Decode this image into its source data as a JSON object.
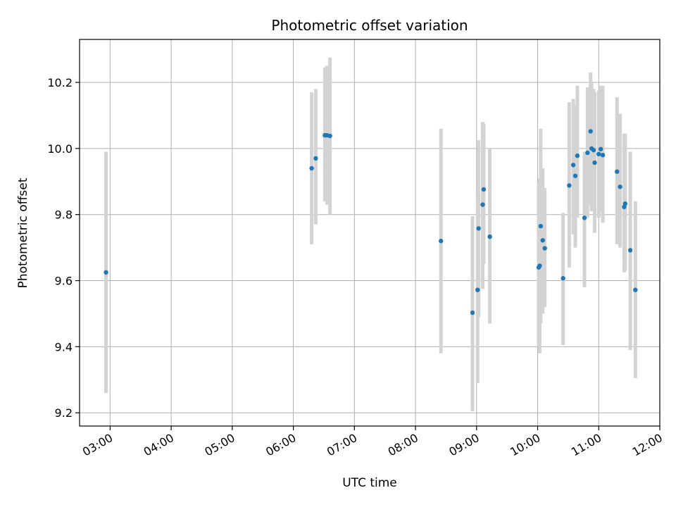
{
  "chart_data": {
    "type": "scatter",
    "title": "Photometric offset variation",
    "xlabel": "UTC time",
    "ylabel": "Photometric offset",
    "x_unit": "UTC time (HH:MM)",
    "xlim": [
      "02:30",
      "12:00"
    ],
    "ylim": [
      9.16,
      10.33
    ],
    "x_ticks": [
      "03:00",
      "04:00",
      "05:00",
      "06:00",
      "07:00",
      "08:00",
      "09:00",
      "10:00",
      "11:00",
      "12:00"
    ],
    "y_ticks": [
      9.2,
      9.4,
      9.6,
      9.8,
      10.0,
      10.2
    ],
    "y_tick_labels": [
      "9.2",
      "9.4",
      "9.6",
      "9.8",
      "10.0",
      "10.2"
    ],
    "grid": true,
    "marker_color": "#1f77b4",
    "errorbar_color": "#d3d3d3",
    "points": [
      {
        "x": "02:56",
        "y": 9.625,
        "ylo": 9.26,
        "yhi": 9.99
      },
      {
        "x": "06:18",
        "y": 9.94,
        "ylo": 9.71,
        "yhi": 10.17
      },
      {
        "x": "06:22",
        "y": 9.97,
        "ylo": 9.77,
        "yhi": 10.18
      },
      {
        "x": "06:31",
        "y": 10.04,
        "ylo": 9.84,
        "yhi": 10.245
      },
      {
        "x": "06:33",
        "y": 10.04,
        "ylo": 9.83,
        "yhi": 10.25
      },
      {
        "x": "06:36",
        "y": 10.038,
        "ylo": 9.8,
        "yhi": 10.275
      },
      {
        "x": "08:25",
        "y": 9.72,
        "ylo": 9.38,
        "yhi": 10.06
      },
      {
        "x": "08:56",
        "y": 9.503,
        "ylo": 9.205,
        "yhi": 9.795
      },
      {
        "x": "09:01",
        "y": 9.572,
        "ylo": 9.29,
        "yhi": 9.86
      },
      {
        "x": "09:02",
        "y": 9.758,
        "ylo": 9.49,
        "yhi": 10.025
      },
      {
        "x": "09:06",
        "y": 9.83,
        "ylo": 9.575,
        "yhi": 10.08
      },
      {
        "x": "09:07",
        "y": 9.876,
        "ylo": 9.65,
        "yhi": 10.075
      },
      {
        "x": "09:13",
        "y": 9.733,
        "ylo": 9.47,
        "yhi": 10.0
      },
      {
        "x": "10:01",
        "y": 9.64,
        "ylo": 9.4,
        "yhi": 9.895
      },
      {
        "x": "10:02",
        "y": 9.645,
        "ylo": 9.38,
        "yhi": 9.91
      },
      {
        "x": "10:03",
        "y": 9.765,
        "ylo": 9.47,
        "yhi": 10.06
      },
      {
        "x": "10:05",
        "y": 9.722,
        "ylo": 9.5,
        "yhi": 9.94
      },
      {
        "x": "10:07",
        "y": 9.698,
        "ylo": 9.52,
        "yhi": 9.88
      },
      {
        "x": "10:25",
        "y": 9.607,
        "ylo": 9.405,
        "yhi": 9.805
      },
      {
        "x": "10:31",
        "y": 9.888,
        "ylo": 9.64,
        "yhi": 10.14
      },
      {
        "x": "10:35",
        "y": 9.95,
        "ylo": 9.74,
        "yhi": 10.15
      },
      {
        "x": "10:37",
        "y": 9.917,
        "ylo": 9.7,
        "yhi": 10.13
      },
      {
        "x": "10:39",
        "y": 9.978,
        "ylo": 9.79,
        "yhi": 10.19
      },
      {
        "x": "10:46",
        "y": 9.79,
        "ylo": 9.58,
        "yhi": 9.99
      },
      {
        "x": "10:49",
        "y": 9.987,
        "ylo": 9.79,
        "yhi": 10.185
      },
      {
        "x": "10:52",
        "y": 10.052,
        "ylo": 9.83,
        "yhi": 10.23
      },
      {
        "x": "10:53",
        "y": 10.0,
        "ylo": 9.81,
        "yhi": 10.2
      },
      {
        "x": "10:55",
        "y": 9.995,
        "ylo": 9.81,
        "yhi": 10.18
      },
      {
        "x": "10:56",
        "y": 9.957,
        "ylo": 9.745,
        "yhi": 10.17
      },
      {
        "x": "11:00",
        "y": 9.983,
        "ylo": 9.79,
        "yhi": 10.175
      },
      {
        "x": "11:02",
        "y": 9.998,
        "ylo": 9.81,
        "yhi": 10.19
      },
      {
        "x": "11:04",
        "y": 9.98,
        "ylo": 9.775,
        "yhi": 10.19
      },
      {
        "x": "11:18",
        "y": 9.93,
        "ylo": 9.71,
        "yhi": 10.155
      },
      {
        "x": "11:21",
        "y": 9.884,
        "ylo": 9.7,
        "yhi": 10.105
      },
      {
        "x": "11:25",
        "y": 9.823,
        "ylo": 9.625,
        "yhi": 10.045
      },
      {
        "x": "11:26",
        "y": 9.833,
        "ylo": 9.63,
        "yhi": 10.045
      },
      {
        "x": "11:31",
        "y": 9.692,
        "ylo": 9.39,
        "yhi": 9.99
      },
      {
        "x": "11:36",
        "y": 9.572,
        "ylo": 9.305,
        "yhi": 9.84
      }
    ]
  }
}
